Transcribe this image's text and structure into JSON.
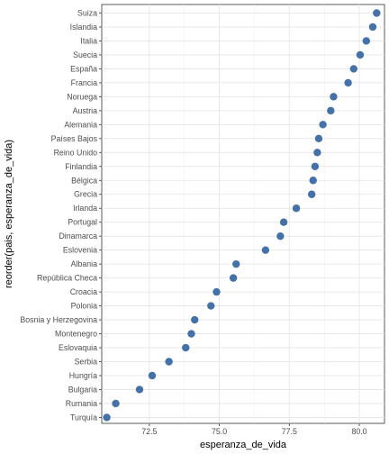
{
  "chart_data": {
    "type": "scatter",
    "title": "",
    "xlabel": "esperanza_de_vida",
    "ylabel": "reorder(pais, esperanza_de_vida)",
    "xlim": [
      70.8,
      80.9
    ],
    "xticks": [
      "72.5",
      "75.0",
      "77.5",
      "80.0"
    ],
    "grid": true,
    "point_color": "#4472a8",
    "categories": [
      "Suiza",
      "Islandia",
      "Italia",
      "Suecia",
      "España",
      "Francia",
      "Noruega",
      "Austria",
      "Alemania",
      "Países Bajos",
      "Reino Unido",
      "Finlandia",
      "Bélgica",
      "Grecia",
      "Irlanda",
      "Portugal",
      "Dinamarca",
      "Eslovenia",
      "Albania",
      "República Checa",
      "Croacia",
      "Polonia",
      "Bosnia y Herzegovina",
      "Montenegro",
      "Eslovaquia",
      "Serbia",
      "Hungría",
      "Bulgaria",
      "Rumania",
      "Turquía"
    ],
    "values": [
      80.62,
      80.48,
      80.25,
      80.03,
      79.8,
      79.6,
      79.08,
      78.98,
      78.7,
      78.55,
      78.5,
      78.42,
      78.35,
      78.3,
      77.75,
      77.3,
      77.18,
      76.65,
      75.6,
      75.5,
      74.9,
      74.7,
      74.12,
      74.0,
      73.8,
      73.2,
      72.6,
      72.15,
      71.3,
      70.98
    ]
  }
}
